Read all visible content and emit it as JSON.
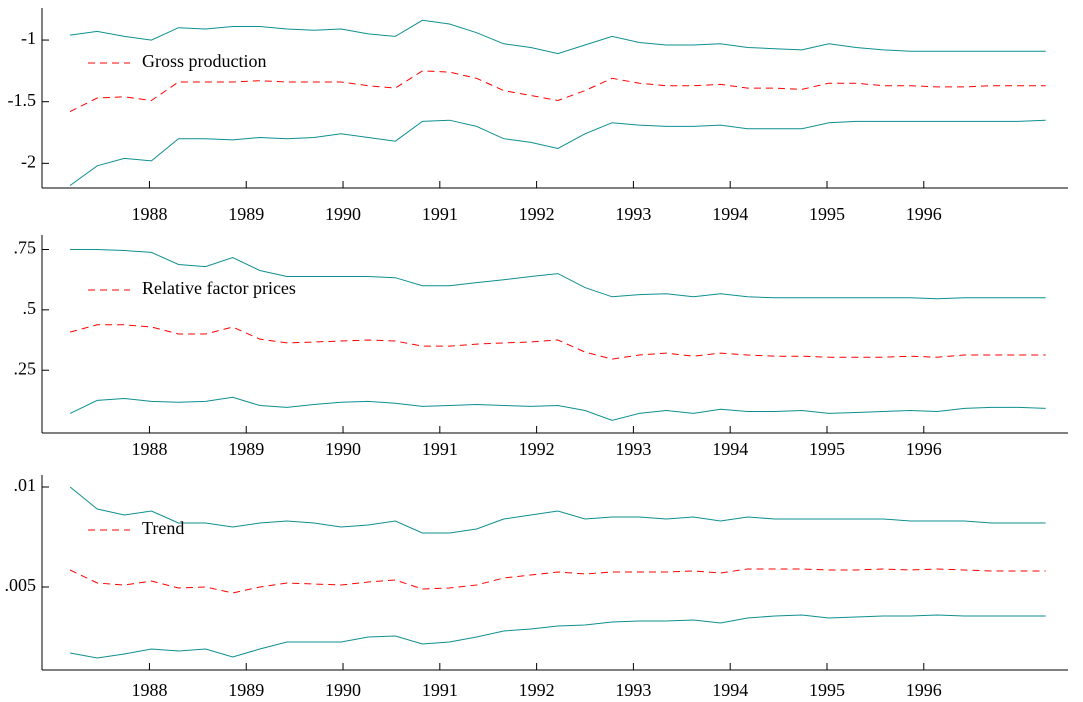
{
  "chart_data": [
    {
      "type": "line",
      "x": [
        1987.18,
        1987.46,
        1987.74,
        1988.02,
        1988.3,
        1988.58,
        1988.86,
        1989.14,
        1989.42,
        1989.7,
        1989.98,
        1990.26,
        1990.54,
        1990.82,
        1991.1,
        1991.38,
        1991.66,
        1991.94,
        1992.22,
        1992.5,
        1992.78,
        1993.06,
        1993.34,
        1993.62,
        1993.9,
        1994.18,
        1994.46,
        1994.74,
        1995.02,
        1995.3,
        1995.58,
        1995.86,
        1996.14,
        1996.42,
        1996.7,
        1996.98,
        1997.26
      ],
      "series": [
        {
          "color": "#0f8f8f",
          "linestyle": "solid",
          "values": [
            -0.96,
            -0.93,
            -0.97,
            -1.0,
            -0.9,
            -0.91,
            -0.89,
            -0.89,
            -0.91,
            -0.92,
            -0.91,
            -0.95,
            -0.97,
            -0.84,
            -0.87,
            -0.94,
            -1.03,
            -1.06,
            -1.11,
            -1.04,
            -0.97,
            -1.02,
            -1.04,
            -1.04,
            -1.03,
            -1.06,
            -1.07,
            -1.08,
            -1.03,
            -1.06,
            -1.08,
            -1.09,
            -1.09,
            -1.09,
            -1.09,
            -1.09,
            -1.09
          ]
        },
        {
          "name": "Gross production",
          "color": "#ff0000",
          "linestyle": "dashed",
          "values": [
            -1.58,
            -1.47,
            -1.46,
            -1.49,
            -1.34,
            -1.34,
            -1.34,
            -1.33,
            -1.34,
            -1.34,
            -1.34,
            -1.37,
            -1.39,
            -1.25,
            -1.26,
            -1.31,
            -1.41,
            -1.45,
            -1.49,
            -1.41,
            -1.31,
            -1.35,
            -1.37,
            -1.37,
            -1.36,
            -1.39,
            -1.39,
            -1.4,
            -1.35,
            -1.35,
            -1.37,
            -1.37,
            -1.38,
            -1.38,
            -1.37,
            -1.37,
            -1.37
          ]
        },
        {
          "color": "#0f8f8f",
          "linestyle": "solid",
          "values": [
            -2.18,
            -2.02,
            -1.96,
            -1.98,
            -1.8,
            -1.8,
            -1.81,
            -1.79,
            -1.8,
            -1.79,
            -1.76,
            -1.79,
            -1.82,
            -1.66,
            -1.65,
            -1.7,
            -1.8,
            -1.83,
            -1.88,
            -1.76,
            -1.67,
            -1.69,
            -1.7,
            -1.7,
            -1.69,
            -1.72,
            -1.72,
            -1.72,
            -1.67,
            -1.66,
            -1.66,
            -1.66,
            -1.66,
            -1.66,
            -1.66,
            -1.66,
            -1.65
          ]
        }
      ],
      "xlim": [
        1986.89,
        1997.49
      ],
      "xticks": [
        1988,
        1989,
        1990,
        1991,
        1992,
        1993,
        1994,
        1995,
        1996
      ],
      "ylim": [
        -2.2,
        -0.74
      ],
      "yticks": [
        -2,
        -1.5,
        -1
      ],
      "legend": "upper left"
    },
    {
      "type": "line",
      "x": [
        1987.18,
        1987.46,
        1987.74,
        1988.02,
        1988.3,
        1988.58,
        1988.86,
        1989.14,
        1989.42,
        1989.7,
        1989.98,
        1990.26,
        1990.54,
        1990.82,
        1991.1,
        1991.38,
        1991.66,
        1991.94,
        1992.22,
        1992.5,
        1992.78,
        1993.06,
        1993.34,
        1993.62,
        1993.9,
        1994.18,
        1994.46,
        1994.74,
        1995.02,
        1995.3,
        1995.58,
        1995.86,
        1996.14,
        1996.42,
        1996.7,
        1996.98,
        1997.26
      ],
      "series": [
        {
          "color": "#0f8f8f",
          "linestyle": "solid",
          "values": [
            0.75,
            0.75,
            0.746,
            0.738,
            0.688,
            0.679,
            0.717,
            0.663,
            0.638,
            0.638,
            0.638,
            0.638,
            0.633,
            0.6,
            0.6,
            0.613,
            0.625,
            0.638,
            0.65,
            0.592,
            0.554,
            0.563,
            0.567,
            0.554,
            0.567,
            0.554,
            0.55,
            0.55,
            0.55,
            0.55,
            0.55,
            0.55,
            0.546,
            0.55,
            0.55,
            0.55,
            0.55
          ]
        },
        {
          "name": "Relative factor prices",
          "color": "#ff0000",
          "linestyle": "dashed",
          "values": [
            0.408,
            0.438,
            0.438,
            0.429,
            0.4,
            0.4,
            0.429,
            0.379,
            0.363,
            0.367,
            0.371,
            0.375,
            0.371,
            0.35,
            0.35,
            0.358,
            0.363,
            0.367,
            0.375,
            0.325,
            0.296,
            0.313,
            0.321,
            0.308,
            0.321,
            0.313,
            0.308,
            0.308,
            0.304,
            0.304,
            0.304,
            0.308,
            0.304,
            0.313,
            0.313,
            0.313,
            0.313
          ]
        },
        {
          "color": "#0f8f8f",
          "linestyle": "solid",
          "values": [
            0.071,
            0.125,
            0.133,
            0.121,
            0.117,
            0.121,
            0.138,
            0.104,
            0.096,
            0.108,
            0.117,
            0.121,
            0.113,
            0.1,
            0.104,
            0.108,
            0.104,
            0.1,
            0.104,
            0.083,
            0.042,
            0.071,
            0.083,
            0.071,
            0.088,
            0.079,
            0.079,
            0.083,
            0.071,
            0.075,
            0.079,
            0.083,
            0.079,
            0.092,
            0.096,
            0.096,
            0.092
          ]
        }
      ],
      "xlim": [
        1986.89,
        1997.49
      ],
      "xticks": [
        1988,
        1989,
        1990,
        1991,
        1992,
        1993,
        1994,
        1995,
        1996
      ],
      "ylim": [
        -0.01,
        0.81
      ],
      "yticks": [
        {
          "value": 0.25,
          "label": ".25"
        },
        {
          "value": 0.5,
          "label": ".5"
        },
        {
          "value": 0.75,
          "label": ".75"
        }
      ],
      "legend": "upper left"
    },
    {
      "type": "line",
      "x": [
        1987.18,
        1987.46,
        1987.74,
        1988.02,
        1988.3,
        1988.58,
        1988.86,
        1989.14,
        1989.42,
        1989.7,
        1989.98,
        1990.26,
        1990.54,
        1990.82,
        1991.1,
        1991.38,
        1991.66,
        1991.94,
        1992.22,
        1992.5,
        1992.78,
        1993.06,
        1993.34,
        1993.62,
        1993.9,
        1994.18,
        1994.46,
        1994.74,
        1995.02,
        1995.3,
        1995.58,
        1995.86,
        1996.14,
        1996.42,
        1996.7,
        1996.98,
        1997.26
      ],
      "series": [
        {
          "color": "#0f8f8f",
          "linestyle": "solid",
          "values": [
            0.01,
            0.0089,
            0.0086,
            0.0088,
            0.0082,
            0.0082,
            0.008,
            0.0082,
            0.0083,
            0.0082,
            0.008,
            0.0081,
            0.0083,
            0.0077,
            0.0077,
            0.0079,
            0.0084,
            0.0086,
            0.0088,
            0.0084,
            0.0085,
            0.0085,
            0.0084,
            0.0085,
            0.0083,
            0.0085,
            0.0084,
            0.0084,
            0.0084,
            0.0084,
            0.0084,
            0.0083,
            0.0083,
            0.0083,
            0.0082,
            0.0082,
            0.0082
          ]
        },
        {
          "name": "Trend",
          "color": "#ff0000",
          "linestyle": "dashed",
          "values": [
            0.00585,
            0.0052,
            0.0051,
            0.0053,
            0.00495,
            0.005,
            0.0047,
            0.005,
            0.0052,
            0.00515,
            0.0051,
            0.00525,
            0.00535,
            0.0049,
            0.00495,
            0.0051,
            0.00545,
            0.0056,
            0.00575,
            0.00565,
            0.00575,
            0.00575,
            0.00575,
            0.0058,
            0.0057,
            0.0059,
            0.0059,
            0.0059,
            0.00585,
            0.00585,
            0.0059,
            0.00585,
            0.0059,
            0.00585,
            0.0058,
            0.0058,
            0.0058
          ]
        },
        {
          "color": "#0f8f8f",
          "linestyle": "solid",
          "values": [
            0.0017,
            0.00145,
            0.00165,
            0.0019,
            0.0018,
            0.0019,
            0.0015,
            0.0019,
            0.00225,
            0.00225,
            0.00225,
            0.0025,
            0.00255,
            0.00215,
            0.00225,
            0.0025,
            0.0028,
            0.0029,
            0.00305,
            0.0031,
            0.00325,
            0.0033,
            0.0033,
            0.00335,
            0.0032,
            0.00345,
            0.00355,
            0.0036,
            0.00345,
            0.0035,
            0.00355,
            0.00355,
            0.0036,
            0.00355,
            0.00355,
            0.00355,
            0.00355
          ]
        }
      ],
      "xlim": [
        1986.89,
        1997.49
      ],
      "xticks": [
        1988,
        1989,
        1990,
        1991,
        1992,
        1993,
        1994,
        1995,
        1996
      ],
      "ylim": [
        0.00085,
        0.0106
      ],
      "yticks": [
        {
          "value": 0.005,
          "label": ".005"
        },
        {
          "value": 0.01,
          "label": ".01"
        }
      ],
      "legend": "upper left"
    }
  ]
}
